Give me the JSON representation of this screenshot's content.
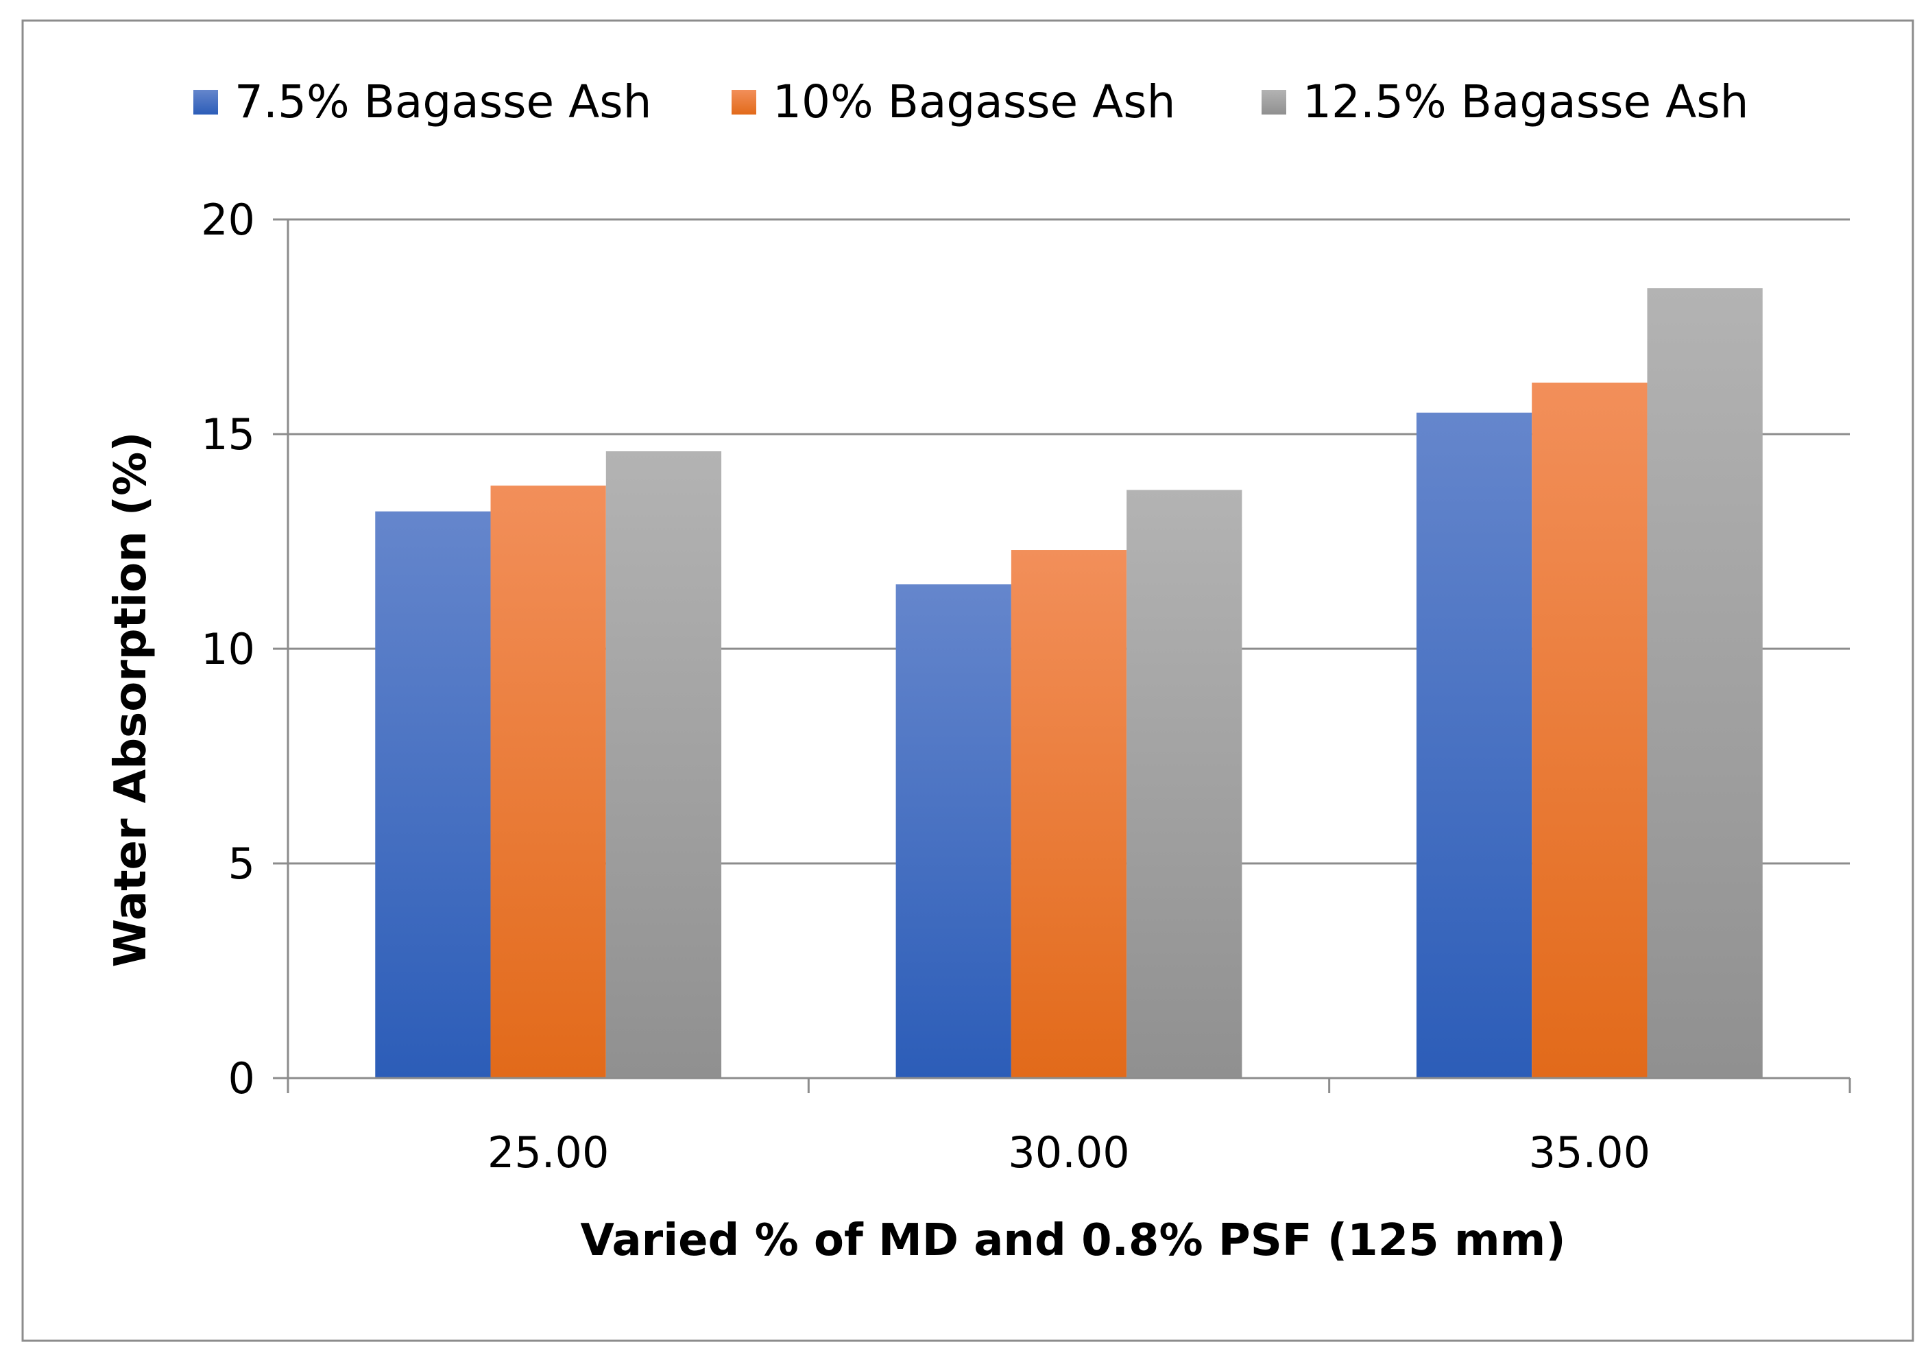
{
  "chart_data": {
    "type": "bar",
    "title": "",
    "xlabel": "Varied % of MD and 0.8% PSF (125 mm)",
    "ylabel": "Water Absorption (%)",
    "categories": [
      "25.00",
      "30.00",
      "35.00"
    ],
    "series": [
      {
        "name": "7.5% Bagasse Ash",
        "values": [
          13.2,
          11.5,
          15.5
        ]
      },
      {
        "name": "10% Bagasse Ash",
        "values": [
          13.8,
          12.3,
          16.2
        ]
      },
      {
        "name": "12.5% Bagasse Ash",
        "values": [
          14.6,
          13.7,
          18.4
        ]
      }
    ],
    "ylim": [
      0,
      20
    ],
    "yticks": [
      "0",
      "5",
      "10",
      "15",
      "20"
    ],
    "grid": true,
    "legend_position": "top"
  },
  "colors": {
    "series_top": [
      "#6586CC",
      "#F28F5A",
      "#B3B3B3"
    ],
    "series_bottom": [
      "#2C5DB8",
      "#E26A1A",
      "#909090"
    ],
    "grid": "#8C8C8C",
    "frame": "#8C8C8C"
  }
}
